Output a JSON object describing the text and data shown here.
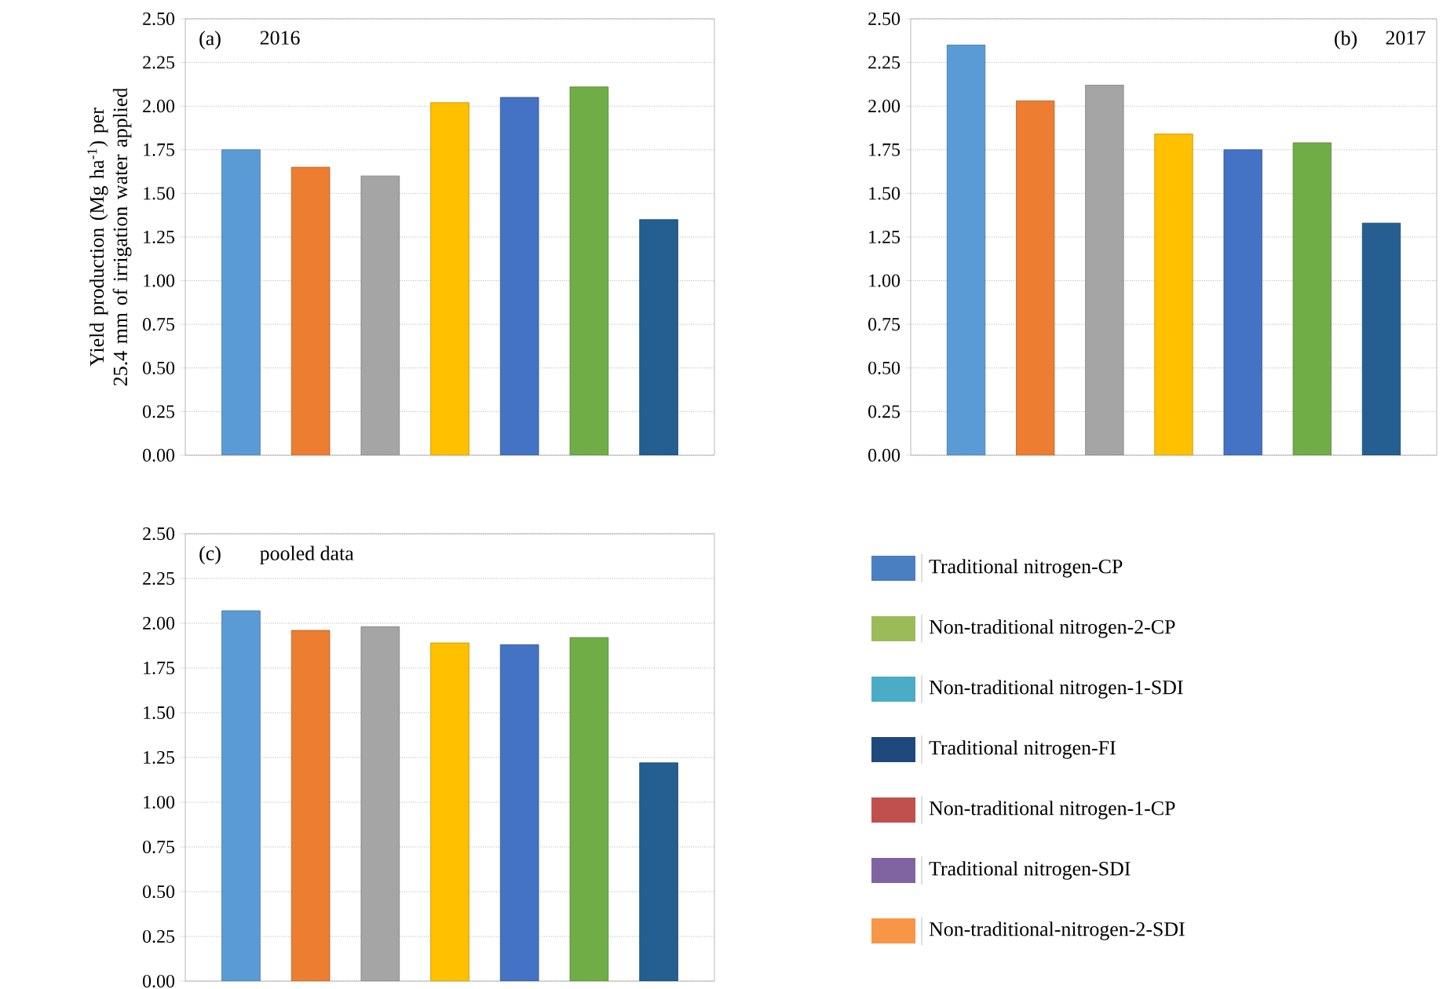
{
  "chart_data": [
    {
      "type": "bar",
      "title": "(a)",
      "subtitle": "2016",
      "ylabel": "Yield production (Mg ha$^{-1}$) per 25.4 mm of irrigation water applied",
      "categories": [
        null,
        null,
        null,
        null,
        null,
        null,
        null
      ],
      "values": [
        1.75,
        1.65,
        1.6,
        2.02,
        2.05,
        2.11,
        1.35
      ],
      "colors": [
        "#5b9bd5",
        "#ed7d31",
        "#a5a5a5",
        "#ffc000",
        "#4472c4",
        "#70ad47",
        "#255e91"
      ],
      "ylim": [
        0,
        2.5
      ],
      "yticks": [
        {
          "value": 0,
          "label": "0.00"
        },
        {
          "value": 0.25,
          "label": "0.25"
        },
        {
          "value": 0.5,
          "label": "0.50"
        },
        {
          "value": 0.75,
          "label": "0.75"
        },
        {
          "value": 1,
          "label": "1.00"
        },
        {
          "value": 1.25,
          "label": "1.25"
        },
        {
          "value": 1.5,
          "label": "1.50"
        },
        {
          "value": 1.75,
          "label": "1.75"
        },
        {
          "value": 2,
          "label": "2.00"
        },
        {
          "value": 2.25,
          "label": "2.25"
        },
        {
          "value": 2.5,
          "label": "2.50"
        }
      ],
      "grid": "y"
    },
    {
      "type": "bar",
      "title": "(b)",
      "subtitle": "2017",
      "categories": [
        null,
        null,
        null,
        null,
        null,
        null,
        null
      ],
      "values": [
        2.35,
        2.03,
        2.12,
        1.84,
        1.75,
        1.79,
        1.33
      ],
      "colors": [
        "#5b9bd5",
        "#ed7d31",
        "#a5a5a5",
        "#ffc000",
        "#4472c4",
        "#70ad47",
        "#255e91"
      ],
      "ylim": [
        0,
        2.5
      ],
      "yticks": [
        {
          "value": 0,
          "label": "0.00"
        },
        {
          "value": 0.25,
          "label": "0.25"
        },
        {
          "value": 0.5,
          "label": "0.50"
        },
        {
          "value": 0.75,
          "label": "0.75"
        },
        {
          "value": 1,
          "label": "1.00"
        },
        {
          "value": 1.25,
          "label": "1.25"
        },
        {
          "value": 1.5,
          "label": "1.50"
        },
        {
          "value": 1.75,
          "label": "1.75"
        },
        {
          "value": 2,
          "label": "2.00"
        },
        {
          "value": 2.25,
          "label": "2.25"
        },
        {
          "value": 2.5,
          "label": "2.50"
        }
      ],
      "grid": "y"
    },
    {
      "type": "bar",
      "title": "(c)",
      "subtitle": "pooled data",
      "categories": [
        null,
        null,
        null,
        null,
        null,
        null,
        null
      ],
      "values": [
        2.07,
        1.96,
        1.98,
        1.89,
        1.88,
        1.92,
        1.22
      ],
      "colors": [
        "#5b9bd5",
        "#ed7d31",
        "#a5a5a5",
        "#ffc000",
        "#4472c4",
        "#70ad47",
        "#255e91"
      ],
      "ylim": [
        0,
        2.5
      ],
      "yticks": [
        {
          "value": 0,
          "label": "0.00"
        },
        {
          "value": 0.25,
          "label": "0.25"
        },
        {
          "value": 0.5,
          "label": "0.50"
        },
        {
          "value": 0.75,
          "label": "0.75"
        },
        {
          "value": 1,
          "label": "1.00"
        },
        {
          "value": 1.25,
          "label": "1.25"
        },
        {
          "value": 1.5,
          "label": "1.50"
        },
        {
          "value": 1.75,
          "label": "1.75"
        },
        {
          "value": 2,
          "label": "2.00"
        },
        {
          "value": 2.25,
          "label": "2.25"
        },
        {
          "value": 2.5,
          "label": "2.50"
        }
      ],
      "grid": "y"
    },
    {
      "type": "other",
      "categories": [
        "Traditional nitrogen-CP",
        "Non-traditional nitrogen-2-CP",
        "Non-traditional nitrogen-1-SDI",
        "Traditional nitrogen-FI",
        "Non-traditional nitrogen-1-CP",
        "Traditional nitrogen-SDI",
        "Non-traditional-nitrogen-2-SDI"
      ],
      "colors": [
        "#4a7fc1",
        "#9bbb59",
        "#4bacc6",
        "#1f497d",
        "#c0504d",
        "#8064a2",
        "#f79646"
      ]
    }
  ]
}
